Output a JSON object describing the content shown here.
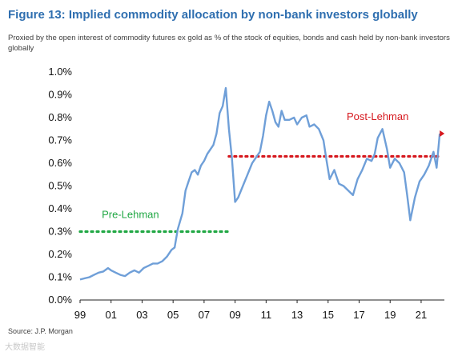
{
  "header": {
    "title": "Figure 13: Implied commodity allocation by non-bank investors globally",
    "subtitle": "Proxied by the open interest of commodity futures ex gold as % of the stock of equities, bonds and cash held by non-bank investors globally"
  },
  "footer": {
    "source": "Source: J.P. Morgan",
    "watermark": "大数据智能"
  },
  "colors": {
    "title": "#2f6fb0",
    "line": "#6f9fd8",
    "pre_lehman": "#22a845",
    "post_lehman": "#d6181e"
  },
  "chart_data": {
    "type": "line",
    "title": "",
    "xlabel": "",
    "ylabel": "",
    "xlim": [
      1999,
      2022.5
    ],
    "ylim": [
      0,
      0.01
    ],
    "y_ticks": [
      "0.0%",
      "0.1%",
      "0.2%",
      "0.3%",
      "0.4%",
      "0.5%",
      "0.6%",
      "0.7%",
      "0.8%",
      "0.9%",
      "1.0%"
    ],
    "x_ticks": [
      "99",
      "01",
      "03",
      "05",
      "07",
      "09",
      "11",
      "13",
      "15",
      "17",
      "19",
      "21"
    ],
    "grid": false,
    "series": [
      {
        "x": [
          1999.0,
          1999.3,
          1999.6,
          1999.9,
          2000.2,
          2000.5,
          2000.8,
          2001.0,
          2001.3,
          2001.6,
          2001.9,
          2002.2,
          2002.5,
          2002.8,
          2003.1,
          2003.4,
          2003.7,
          2004.0,
          2004.3,
          2004.6,
          2004.9,
          2005.1,
          2005.3,
          2005.6,
          2005.8,
          2006.0,
          2006.2,
          2006.4,
          2006.6,
          2006.8,
          2007.0,
          2007.2,
          2007.4,
          2007.6,
          2007.8,
          2008.0,
          2008.2,
          2008.4,
          2008.6,
          2008.8,
          2009.0,
          2009.2,
          2009.5,
          2009.8,
          2010.1,
          2010.4,
          2010.6,
          2010.8,
          2011.0,
          2011.2,
          2011.4,
          2011.6,
          2011.8,
          2012.0,
          2012.2,
          2012.5,
          2012.8,
          2013.0,
          2013.3,
          2013.6,
          2013.8,
          2014.1,
          2014.4,
          2014.7,
          2014.9,
          2015.1,
          2015.4,
          2015.7,
          2016.0,
          2016.3,
          2016.6,
          2016.9,
          2017.2,
          2017.5,
          2017.8,
          2018.0,
          2018.2,
          2018.5,
          2018.8,
          2019.0,
          2019.3,
          2019.6,
          2019.9,
          2020.1,
          2020.3,
          2020.6,
          2020.9,
          2021.2,
          2021.5,
          2021.8,
          2022.0,
          2022.2
        ],
        "y": [
          0.0009,
          0.00095,
          0.001,
          0.0011,
          0.0012,
          0.00125,
          0.0014,
          0.0013,
          0.0012,
          0.0011,
          0.00105,
          0.0012,
          0.0013,
          0.0012,
          0.0014,
          0.0015,
          0.0016,
          0.0016,
          0.0017,
          0.0019,
          0.0022,
          0.0023,
          0.0031,
          0.0038,
          0.0048,
          0.0052,
          0.0056,
          0.0057,
          0.0055,
          0.0059,
          0.0061,
          0.0064,
          0.0066,
          0.0068,
          0.0073,
          0.0082,
          0.0085,
          0.0093,
          0.0075,
          0.0062,
          0.0043,
          0.0045,
          0.005,
          0.0055,
          0.006,
          0.0063,
          0.0065,
          0.0072,
          0.0081,
          0.0087,
          0.0083,
          0.0078,
          0.0076,
          0.0083,
          0.0079,
          0.0079,
          0.008,
          0.0077,
          0.008,
          0.0081,
          0.0076,
          0.0077,
          0.0075,
          0.007,
          0.0061,
          0.0053,
          0.0057,
          0.0051,
          0.005,
          0.0048,
          0.0046,
          0.0053,
          0.0057,
          0.0062,
          0.0061,
          0.0064,
          0.0071,
          0.0075,
          0.0066,
          0.0058,
          0.0062,
          0.006,
          0.0056,
          0.0046,
          0.0035,
          0.0045,
          0.0052,
          0.0055,
          0.0059,
          0.0065,
          0.0058,
          0.0073
        ]
      }
    ],
    "reference_lines": [
      {
        "name": "Pre-Lehman",
        "y": 0.003,
        "x_start": 1999,
        "x_end": 2008.6
      },
      {
        "name": "Post-Lehman",
        "y": 0.0063,
        "x_start": 2008.6,
        "x_end": 2022.2
      }
    ]
  }
}
